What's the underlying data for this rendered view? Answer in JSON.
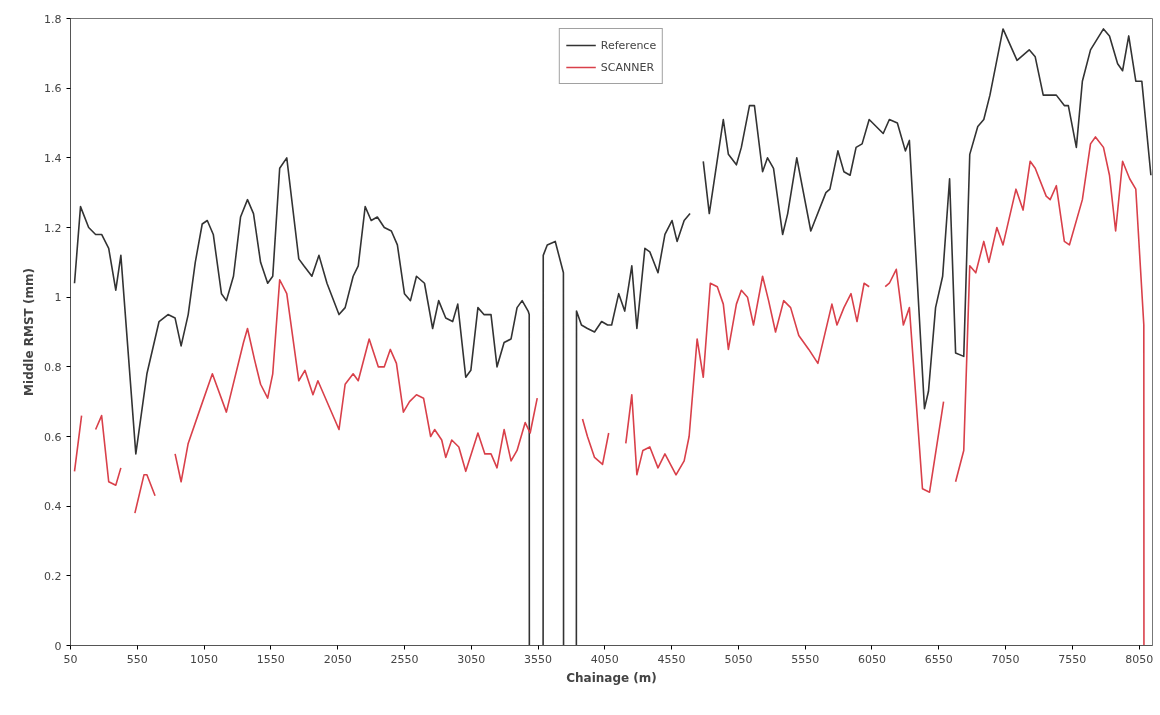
{
  "chart_data": {
    "type": "line",
    "xlabel": "Chainage (m)",
    "ylabel": "Middle RMST (mm)",
    "xlim": [
      50,
      8150
    ],
    "ylim": [
      0,
      1.8
    ],
    "xticks": [
      50,
      550,
      1050,
      1550,
      2050,
      2550,
      3050,
      3550,
      4050,
      4550,
      5050,
      5550,
      6050,
      6550,
      7050,
      7550,
      8050
    ],
    "yticks": [
      0,
      0.2,
      0.4,
      0.6,
      0.8,
      1,
      1.2,
      1.4,
      1.6,
      1.8
    ],
    "grid": false,
    "legend": "top",
    "line_style": "solid",
    "marker": "none",
    "series": [
      {
        "name": "Reference",
        "color": "#333333",
        "x": [
          80,
          125,
          186,
          238,
          283,
          336,
          389,
          427,
          539,
          622,
          713,
          780,
          833,
          878,
          931,
          984,
          1036,
          1074,
          1119,
          1180,
          1217,
          1270,
          1323,
          1375,
          1420,
          1473,
          1526,
          1564,
          1616,
          1669,
          1759,
          1797,
          1857,
          1910,
          1970,
          2060,
          2106,
          2166,
          2204,
          2256,
          2301,
          2347,
          2399,
          2452,
          2497,
          2550,
          2595,
          2640,
          2700,
          2761,
          2806,
          2859,
          2911,
          2949,
          3009,
          3047,
          3100,
          3145,
          3198,
          3243,
          3296,
          3348,
          3393,
          3431,
          3476,
          3484,
          3485,
          3540,
          3588,
          3589,
          3619,
          3679,
          3740,
          3741,
          3790,
          3837,
          3838,
          3875,
          3920,
          3973,
          4026,
          4071,
          4101,
          4154,
          4199,
          4252,
          4290,
          4350,
          4387,
          4448,
          4500,
          4553,
          4591,
          4644,
          4688,
          4740,
          4787,
          4832,
          4937,
          4975,
          5035,
          5072,
          5133,
          5170,
          5231,
          5268,
          5313,
          5381,
          5419,
          5487,
          5592,
          5705,
          5735,
          5795,
          5840,
          5886,
          5931,
          5976,
          6029,
          6134,
          6180,
          6240,
          6300,
          6330,
          6443,
          6473,
          6526,
          6579,
          6631,
          6676,
          6737,
          6782,
          6842,
          6887,
          6933,
          7031,
          7136,
          7227,
          7272,
          7332,
          7430,
          7490,
          7520,
          7580,
          7625,
          7686,
          7783,
          7828,
          7889,
          7926,
          7972,
          8025,
          8070,
          8138
        ],
        "values": [
          1.04,
          1.26,
          1.2,
          1.18,
          1.18,
          1.14,
          1.02,
          1.12,
          0.55,
          0.78,
          0.93,
          0.95,
          0.94,
          0.86,
          0.95,
          1.1,
          1.21,
          1.22,
          1.18,
          1.01,
          0.99,
          1.06,
          1.23,
          1.28,
          1.24,
          1.1,
          1.04,
          1.06,
          1.37,
          1.4,
          1.11,
          1.09,
          1.06,
          1.12,
          1.04,
          0.95,
          0.97,
          1.06,
          1.09,
          1.26,
          1.22,
          1.23,
          1.2,
          1.19,
          1.15,
          1.01,
          0.99,
          1.06,
          1.04,
          0.91,
          0.99,
          0.94,
          0.93,
          0.98,
          0.77,
          0.79,
          0.97,
          0.95,
          0.95,
          0.8,
          0.87,
          0.88,
          0.97,
          0.99,
          0.96,
          0.95,
          0,
          null,
          0,
          1.12,
          1.15,
          1.16,
          1.07,
          0,
          null,
          0,
          0.96,
          0.92,
          0.91,
          0.9,
          0.93,
          0.92,
          0.92,
          1.01,
          0.96,
          1.09,
          0.91,
          1.14,
          1.13,
          1.07,
          1.18,
          1.22,
          1.16,
          1.22,
          1.24,
          null,
          1.39,
          1.24,
          1.51,
          1.41,
          1.38,
          1.43,
          1.55,
          1.55,
          1.36,
          1.4,
          1.37,
          1.18,
          1.24,
          1.4,
          1.19,
          1.3,
          1.31,
          1.42,
          1.36,
          1.35,
          1.43,
          1.44,
          1.51,
          1.47,
          1.51,
          1.5,
          1.42,
          1.45,
          0.68,
          0.73,
          0.97,
          1.06,
          1.34,
          0.84,
          0.83,
          1.41,
          1.49,
          1.51,
          1.58,
          1.77,
          1.68,
          1.71,
          1.69,
          1.58,
          1.58,
          1.55,
          1.55,
          1.43,
          1.62,
          1.71,
          1.77,
          1.75,
          1.67,
          1.65,
          1.75,
          1.62,
          1.62,
          1.35
        ]
      },
      {
        "name": "SCANNER",
        "color": "#d9404a",
        "x": [
          80,
          133,
          185,
          238,
          283,
          336,
          389,
          427,
          480,
          532,
          600,
          622,
          683,
          760,
          833,
          878,
          931,
          1021,
          1112,
          1217,
          1345,
          1375,
          1428,
          1473,
          1526,
          1564,
          1616,
          1669,
          1759,
          1805,
          1865,
          1902,
          2060,
          2106,
          2166,
          2204,
          2286,
          2354,
          2399,
          2444,
          2490,
          2542,
          2588,
          2640,
          2693,
          2746,
          2776,
          2829,
          2859,
          2904,
          2957,
          3009,
          3100,
          3152,
          3198,
          3243,
          3296,
          3348,
          3393,
          3454,
          3491,
          3544,
          3700,
          3883,
          3920,
          3973,
          4033,
          4079,
          4140,
          4207,
          4252,
          4290,
          4335,
          4387,
          4448,
          4500,
          4583,
          4644,
          4681,
          4741,
          4787,
          4840,
          4892,
          4937,
          4975,
          5035,
          5072,
          5118,
          5163,
          5231,
          5276,
          5328,
          5389,
          5441,
          5502,
          5577,
          5645,
          5750,
          5788,
          5840,
          5893,
          5938,
          5991,
          6029,
          6090,
          6149,
          6180,
          6232,
          6285,
          6330,
          6428,
          6481,
          6586,
          6630,
          6676,
          6737,
          6782,
          6827,
          6887,
          6925,
          6985,
          7031,
          7128,
          7181,
          7234,
          7272,
          7354,
          7384,
          7430,
          7490,
          7528,
          7625,
          7686,
          7723,
          7783,
          7828,
          7874,
          7926,
          7979,
          8025,
          8085,
          8086
        ],
        "values": [
          0.5,
          0.66,
          null,
          0.62,
          0.66,
          0.47,
          0.46,
          0.51,
          null,
          0.38,
          0.49,
          0.49,
          0.43,
          null,
          0.55,
          0.47,
          0.58,
          0.68,
          0.78,
          0.67,
          0.87,
          0.91,
          0.82,
          0.75,
          0.71,
          0.78,
          1.05,
          1.01,
          0.76,
          0.79,
          0.72,
          0.76,
          0.62,
          0.75,
          0.78,
          0.76,
          0.88,
          0.8,
          0.8,
          0.85,
          0.81,
          0.67,
          0.7,
          0.72,
          0.71,
          0.6,
          0.62,
          0.59,
          0.54,
          0.59,
          0.57,
          0.5,
          0.61,
          0.55,
          0.55,
          0.51,
          0.62,
          0.53,
          0.56,
          0.64,
          0.61,
          0.71,
          null,
          0.65,
          0.6,
          0.54,
          0.52,
          0.61,
          null,
          0.58,
          0.72,
          0.49,
          0.56,
          0.57,
          0.51,
          0.55,
          0.49,
          0.53,
          0.6,
          0.88,
          0.77,
          1.04,
          1.03,
          0.98,
          0.85,
          0.98,
          1.02,
          1,
          0.92,
          1.06,
          0.99,
          0.9,
          0.99,
          0.97,
          0.89,
          0.85,
          0.81,
          0.98,
          0.92,
          0.97,
          1.01,
          0.93,
          1.04,
          1.03,
          null,
          1.03,
          1.04,
          1.08,
          0.92,
          0.97,
          0.45,
          0.44,
          0.7,
          null,
          0.47,
          0.56,
          1.09,
          1.07,
          1.16,
          1.1,
          1.2,
          1.15,
          1.31,
          1.25,
          1.39,
          1.37,
          1.29,
          1.28,
          1.32,
          1.16,
          1.15,
          1.28,
          1.44,
          1.46,
          1.43,
          1.35,
          1.19,
          1.39,
          1.34,
          1.31,
          0.92,
          0
        ]
      }
    ]
  }
}
